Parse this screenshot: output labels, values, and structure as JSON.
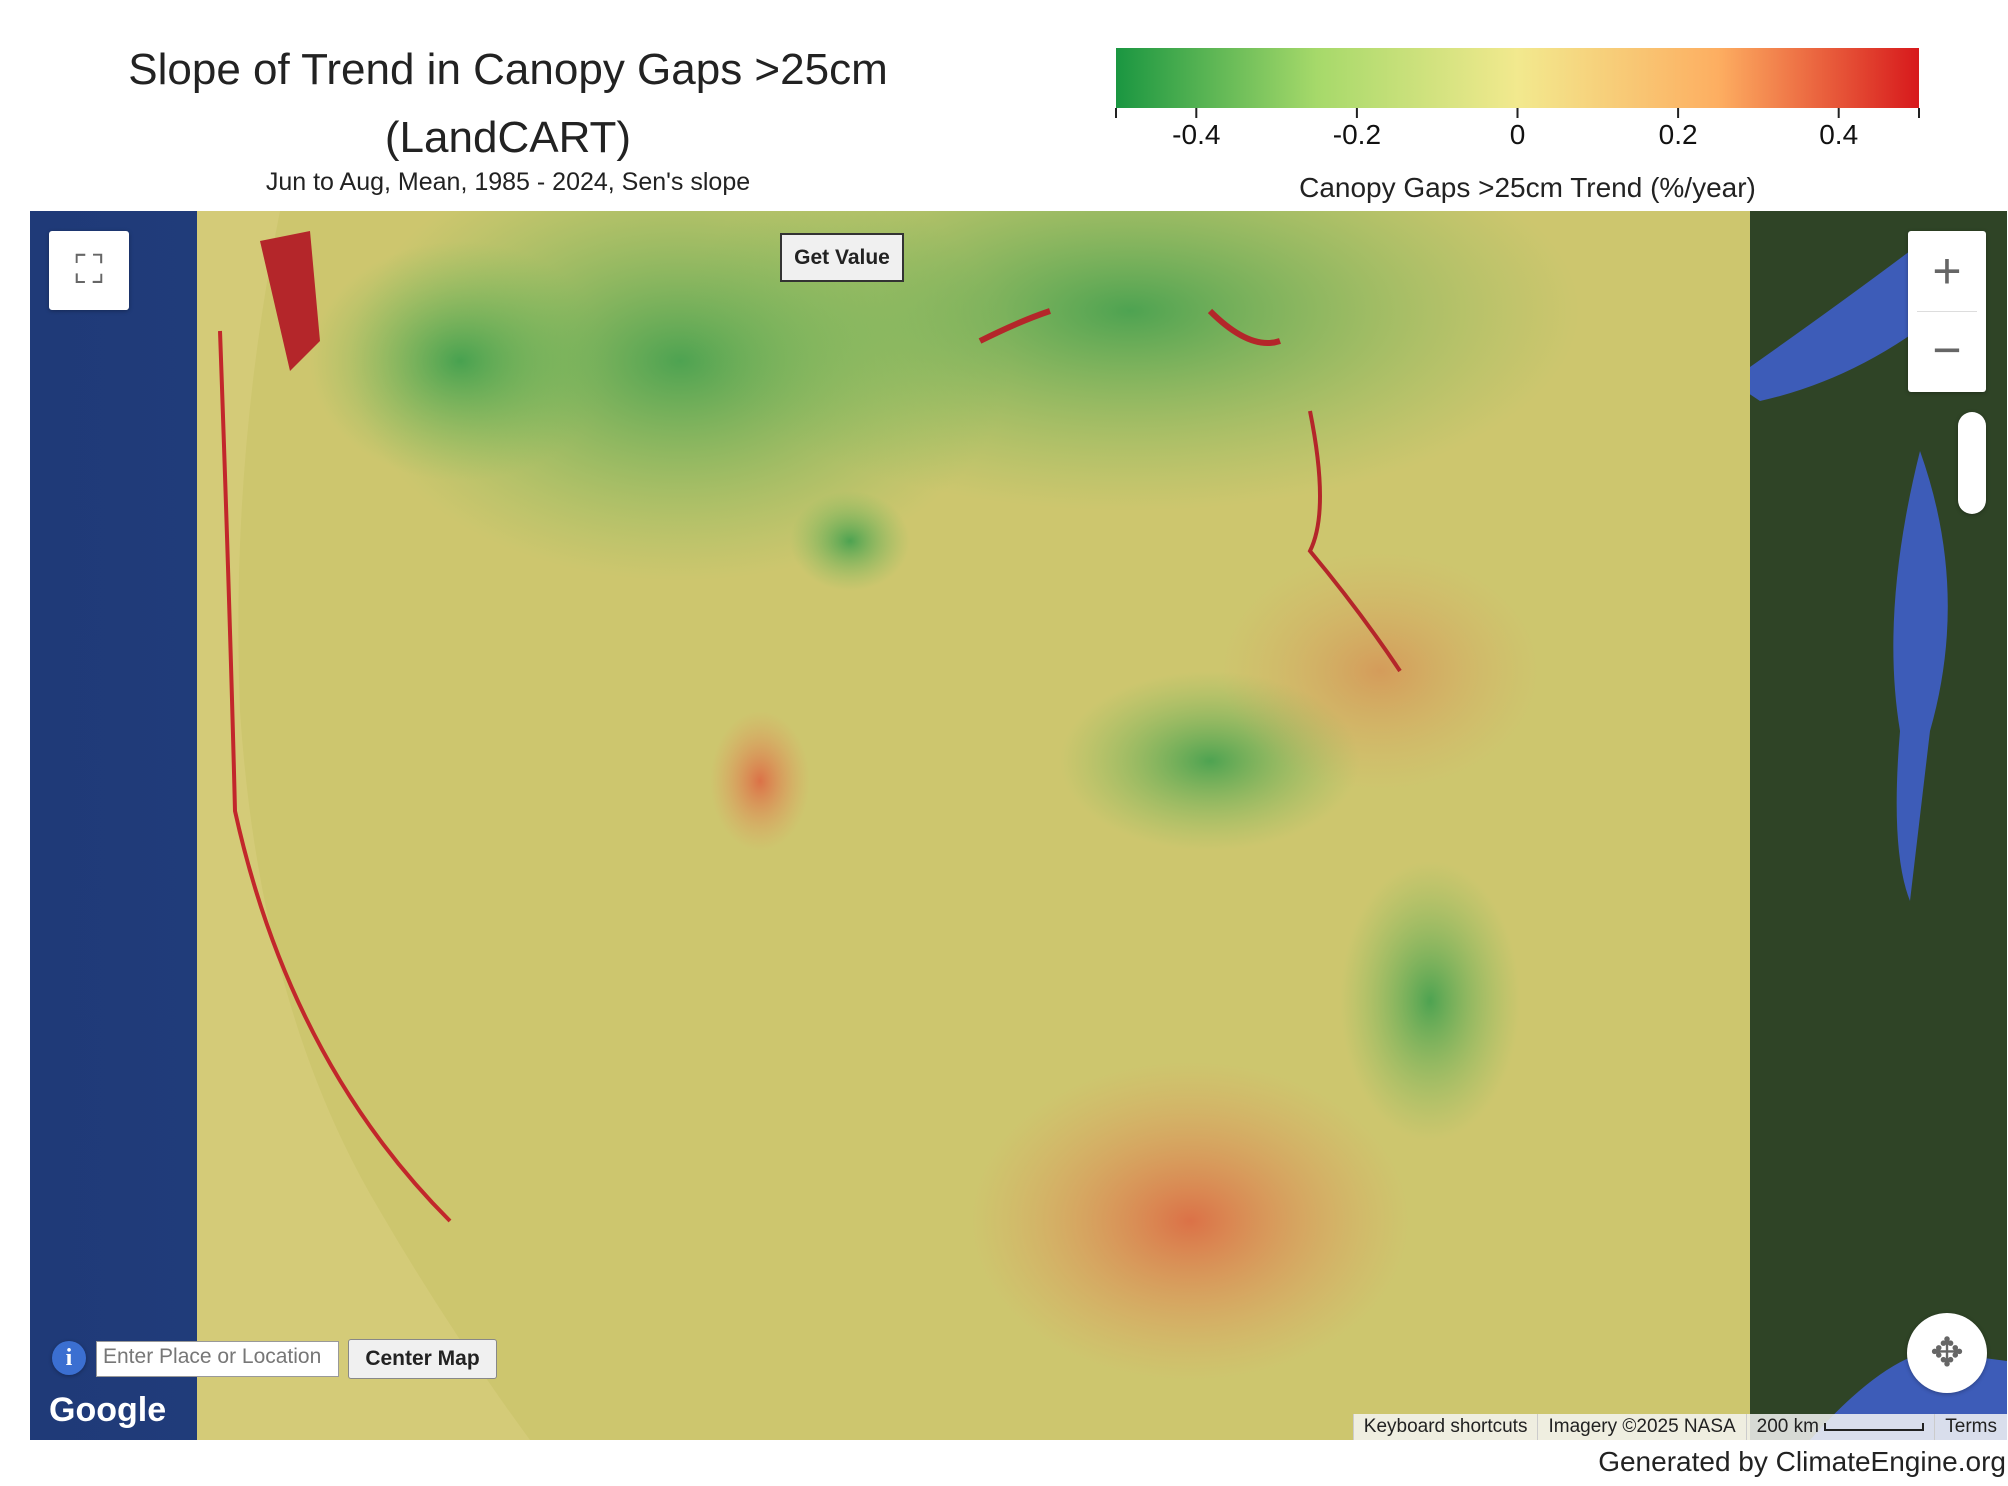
{
  "header": {
    "title": "Slope of Trend in Canopy Gaps >25cm (LandCART)",
    "subtitle": "Jun to Aug, Mean, 1985 - 2024, Sen's slope"
  },
  "colorbar": {
    "label": "Canopy Gaps >25cm Trend (%/year)",
    "lim": [
      -0.5,
      0.5
    ],
    "ticks": [
      -0.4,
      -0.2,
      0,
      0.2,
      0.4
    ],
    "colors": [
      "#1a9641",
      "#a6d96a",
      "#f2e98e",
      "#fdae61",
      "#d7191c"
    ]
  },
  "controls": {
    "get_value": "Get Value",
    "location_placeholder": "Enter Place or Location",
    "center_map": "Center Map"
  },
  "attribution": {
    "logo": "Google",
    "items": [
      "Keyboard shortcuts",
      "Imagery ©2025 NASA",
      "200 km",
      "Terms"
    ]
  },
  "footer": "Generated by ClimateEngine.org"
}
